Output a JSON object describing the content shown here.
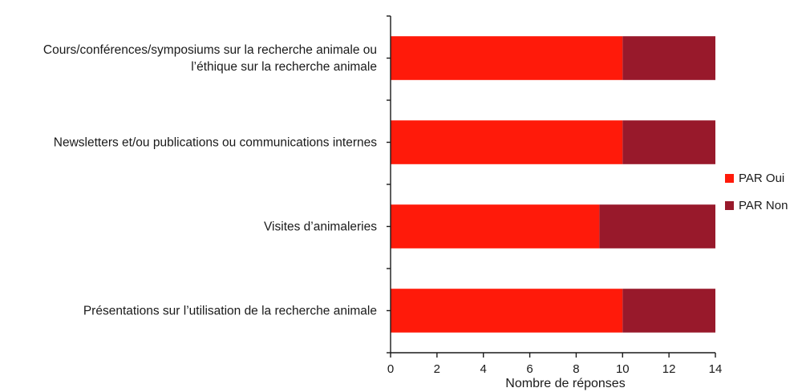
{
  "chart_data": {
    "type": "bar",
    "orientation": "horizontal",
    "stacked": true,
    "title": "",
    "xlabel": "Nombre de réponses",
    "ylabel": "",
    "xlim": [
      0,
      14
    ],
    "xticks": [
      0,
      2,
      4,
      6,
      8,
      10,
      12,
      14
    ],
    "grid": false,
    "legend_position": "right",
    "categories": [
      [
        "Cours/conférences/symposiums sur la recherche animale ou",
        "l’éthique sur la recherche animale"
      ],
      [
        "Newsletters et/ou publications ou communications internes"
      ],
      [
        "Visites d’animaleries"
      ],
      [
        "Présentations sur l’utilisation de la recherche animale"
      ]
    ],
    "series": [
      {
        "name": "PAR Oui",
        "color": "#ff1a0a",
        "values": [
          10,
          10,
          9,
          10
        ]
      },
      {
        "name": "PAR Non",
        "color": "#98192b",
        "values": [
          4,
          4,
          5,
          4
        ]
      }
    ]
  }
}
